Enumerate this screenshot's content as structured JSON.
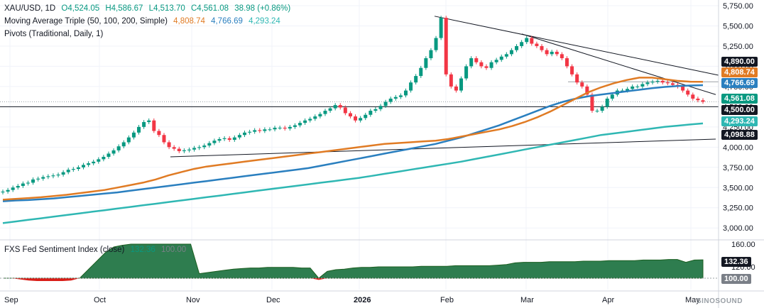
{
  "legend": {
    "symbol": "XAU/USD, 1D",
    "open": "O4,524.05",
    "high": "H4,586.67",
    "low": "L4,513.70",
    "close": "C4,561.08",
    "change": "38.98 (+0.86%)",
    "ma_label": "Moving Average Triple (50, 100, 200, Simple)",
    "ma50": "4,808.74",
    "ma100": "4,766.69",
    "ma200": "4,293.24",
    "pivots_label": "Pivots (Traditional, Daily, 1)",
    "indicator_label": "FXS Fed Sentiment Index (close)",
    "indicator_value": "132.36",
    "indicator_value2": "100.00"
  },
  "price_tags": {
    "t4890": "4,890.00",
    "t4808": "4,808.74",
    "t4766": "4,766.69",
    "t4561": "4,561.08",
    "t4500": "4,500.00",
    "t4293": "4,293.24",
    "t4098": "4,098.88",
    "i132": "132.36",
    "i100": "100.00"
  },
  "watermark": "SINOSOUND",
  "colors": {
    "up": "#089981",
    "down": "#f23645",
    "ma50": "#e07b24",
    "ma100": "#2a7fbf",
    "ma200": "#2fb7b3",
    "indicator_fill": "#2e7d4f",
    "indicator_neg": "#d91e18"
  },
  "chart_data": [
    {
      "type": "candlestick",
      "title": "XAU/USD, 1D",
      "ylim": [
        2800,
        5750
      ],
      "y_ticks": [
        "5,750.00",
        "5,500.00",
        "5,250.00",
        "5,000.00",
        "4,750.00",
        "4,500.00",
        "4,250.00",
        "4,000.00",
        "3,750.00",
        "3,500.00",
        "3,250.00",
        "3,000.00"
      ],
      "x_ticks": [
        "Sep",
        "Oct",
        "Nov",
        "Dec",
        "2026",
        "Feb",
        "Mar",
        "Apr",
        "May"
      ],
      "ohlc_summary": {
        "open": 4524.05,
        "high": 4586.67,
        "low": 4513.7,
        "close": 4561.08
      },
      "candles_close": [
        3450,
        3470,
        3500,
        3520,
        3550,
        3560,
        3600,
        3610,
        3630,
        3640,
        3650,
        3660,
        3690,
        3720,
        3730,
        3750,
        3780,
        3800,
        3820,
        3850,
        3880,
        3920,
        3960,
        4010,
        4060,
        4120,
        4180,
        4250,
        4310,
        4330,
        4200,
        4150,
        4060,
        4000,
        3980,
        3950,
        3960,
        3970,
        3990,
        4000,
        4020,
        4050,
        4080,
        4100,
        4110,
        4090,
        4120,
        4150,
        4180,
        4190,
        4210,
        4200,
        4220,
        4220,
        4240,
        4240,
        4230,
        4250,
        4270,
        4300,
        4330,
        4350,
        4380,
        4410,
        4450,
        4480,
        4520,
        4490,
        4420,
        4380,
        4330,
        4360,
        4400,
        4450,
        4470,
        4510,
        4560,
        4600,
        4620,
        4640,
        4700,
        4800,
        4880,
        4980,
        5100,
        5200,
        5350,
        5600,
        4900,
        4750,
        4700,
        4850,
        5000,
        5100,
        5050,
        5000,
        4980,
        5050,
        5080,
        5120,
        5150,
        5200,
        5250,
        5300,
        5350,
        5280,
        5250,
        5200,
        5150,
        5180,
        5150,
        5100,
        5000,
        4900,
        4800,
        4750,
        4650,
        4450,
        4450,
        4500,
        4600,
        4650,
        4700,
        4700,
        4720,
        4750,
        4750,
        4780,
        4800,
        4810,
        4820,
        4800,
        4790,
        4770,
        4750,
        4700,
        4650,
        4600,
        4580,
        4561.08
      ],
      "series": [
        {
          "name": "50",
          "values_summary_last": 4808.74
        },
        {
          "name": "100",
          "values_summary_last": 4766.69
        },
        {
          "name": "200",
          "values_summary_last": 4293.24
        }
      ],
      "ma50": [
        3350,
        3360,
        3370,
        3380,
        3395,
        3410,
        3430,
        3450,
        3470,
        3500,
        3530,
        3560,
        3600,
        3650,
        3690,
        3730,
        3760,
        3780,
        3800,
        3820,
        3840,
        3860,
        3880,
        3900,
        3920,
        3940,
        3960,
        3980,
        4000,
        4020,
        4040,
        4050,
        4060,
        4070,
        4080,
        4100,
        4130,
        4160,
        4190,
        4220,
        4260,
        4310,
        4370,
        4440,
        4520,
        4600,
        4680,
        4740,
        4790,
        4830,
        4860,
        4860,
        4840,
        4820,
        4810,
        4808.74
      ],
      "ma100": [
        3330,
        3340,
        3345,
        3355,
        3365,
        3380,
        3395,
        3410,
        3425,
        3440,
        3460,
        3480,
        3500,
        3520,
        3540,
        3560,
        3580,
        3600,
        3620,
        3640,
        3660,
        3680,
        3700,
        3720,
        3740,
        3770,
        3800,
        3830,
        3860,
        3890,
        3920,
        3950,
        3980,
        4010,
        4040,
        4080,
        4120,
        4170,
        4220,
        4270,
        4330,
        4390,
        4450,
        4510,
        4560,
        4600,
        4630,
        4650,
        4670,
        4690,
        4710,
        4730,
        4745,
        4755,
        4762,
        4766.69
      ],
      "ma200": [
        3060,
        3080,
        3100,
        3120,
        3140,
        3160,
        3180,
        3200,
        3220,
        3240,
        3260,
        3280,
        3300,
        3320,
        3340,
        3360,
        3380,
        3400,
        3420,
        3440,
        3460,
        3480,
        3500,
        3520,
        3540,
        3560,
        3580,
        3600,
        3620,
        3645,
        3670,
        3695,
        3720,
        3745,
        3770,
        3795,
        3820,
        3850,
        3880,
        3910,
        3940,
        3970,
        4000,
        4030,
        4060,
        4090,
        4120,
        4150,
        4170,
        4190,
        4210,
        4230,
        4250,
        4265,
        4280,
        4293.24
      ],
      "pivots": [
        4890.0,
        4500.0,
        4098.88
      ]
    },
    {
      "type": "area",
      "title": "FXS Fed Sentiment Index (close)",
      "ylim": [
        80,
        165
      ],
      "y_ticks": [
        "160.00",
        "120.00"
      ],
      "values": [
        100,
        100,
        98,
        96,
        95,
        95,
        95,
        95,
        96,
        100,
        115,
        130,
        145,
        155,
        158,
        160,
        160,
        160,
        160,
        160,
        160,
        160,
        160,
        108,
        110,
        112,
        114,
        116,
        117,
        118,
        118,
        119,
        119,
        119,
        119,
        118,
        118,
        97,
        112,
        115,
        116,
        118,
        119,
        119,
        120,
        120,
        120,
        120,
        120,
        121,
        121,
        121,
        121,
        122,
        122,
        122,
        122,
        122,
        123,
        124,
        127,
        128,
        128,
        128,
        129,
        129,
        129,
        129,
        130,
        130,
        130,
        131,
        131,
        131,
        131,
        132,
        132,
        132,
        133,
        133,
        128,
        132,
        132.36
      ],
      "last": 132.36
    }
  ]
}
